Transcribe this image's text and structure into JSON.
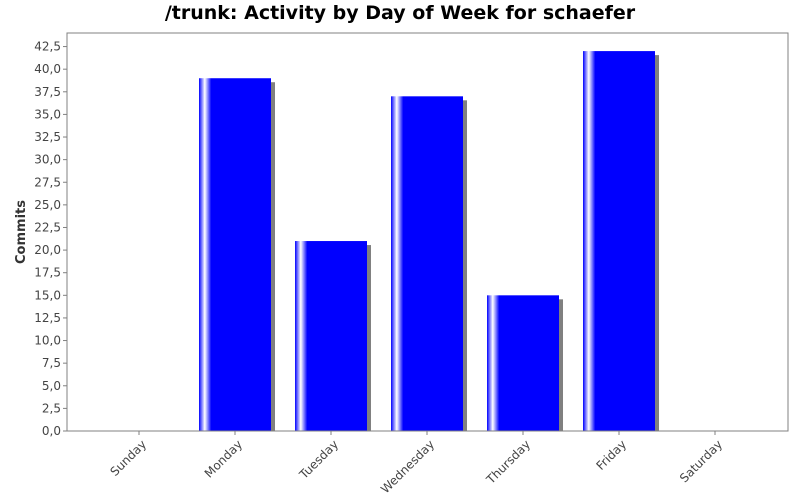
{
  "title": "/trunk: Activity by Day of Week for schaefer",
  "chart_data": {
    "type": "bar",
    "title": "/trunk: Activity by Day of Week for schaefer",
    "xlabel": "",
    "ylabel": "Commits",
    "categories": [
      "Sunday",
      "Monday",
      "Tuesday",
      "Wednesday",
      "Thursday",
      "Friday",
      "Saturday"
    ],
    "values": [
      0,
      39,
      21,
      37,
      15,
      42,
      0
    ],
    "ylim": [
      0,
      44
    ],
    "yticks": [
      "0,0",
      "2,5",
      "5,0",
      "7,5",
      "10,0",
      "12,5",
      "15,0",
      "17,5",
      "20,0",
      "22,5",
      "25,0",
      "27,5",
      "30,0",
      "32,5",
      "35,0",
      "37,5",
      "40,0",
      "42,5"
    ],
    "ytick_values": [
      0,
      2.5,
      5,
      7.5,
      10,
      12.5,
      15,
      17.5,
      20,
      22.5,
      25,
      27.5,
      30,
      32.5,
      35,
      37.5,
      40,
      42.5
    ],
    "grid": false,
    "legend": "none",
    "colors": {
      "bar": "#0000ff",
      "bar_highlight": "#ffffff",
      "shadow": "#808080",
      "axis": "#808080"
    }
  }
}
